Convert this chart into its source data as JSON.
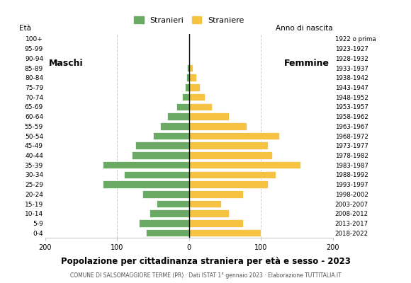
{
  "age_groups": [
    "0-4",
    "5-9",
    "10-14",
    "15-19",
    "20-24",
    "25-29",
    "30-34",
    "35-39",
    "40-44",
    "45-49",
    "50-54",
    "55-59",
    "60-64",
    "65-69",
    "70-74",
    "75-79",
    "80-84",
    "85-89",
    "90-94",
    "95-99",
    "100+"
  ],
  "birth_years": [
    "2018-2022",
    "2013-2017",
    "2008-2012",
    "2003-2007",
    "1998-2002",
    "1993-1997",
    "1988-1992",
    "1983-1987",
    "1978-1982",
    "1973-1977",
    "1968-1972",
    "1963-1967",
    "1958-1962",
    "1953-1957",
    "1948-1952",
    "1943-1947",
    "1938-1942",
    "1933-1937",
    "1928-1932",
    "1923-1927",
    "1922 o prima"
  ],
  "males": [
    60,
    70,
    55,
    45,
    65,
    120,
    90,
    120,
    80,
    75,
    50,
    40,
    30,
    18,
    10,
    6,
    4,
    3,
    0,
    0,
    0
  ],
  "females": [
    100,
    75,
    55,
    45,
    75,
    110,
    120,
    155,
    115,
    110,
    125,
    80,
    55,
    32,
    22,
    15,
    10,
    5,
    0,
    0,
    0
  ],
  "male_color": "#6aaa64",
  "female_color": "#f5c242",
  "bg_color": "#ffffff",
  "grid_color": "#cccccc",
  "xlim": 200,
  "title": "Popolazione per cittadinanza straniera per età e sesso - 2023",
  "subtitle": "COMUNE DI SALSOMAGGIORE TERME (PR) · Dati ISTAT 1° gennaio 2023 · Elaborazione TUTTITALIA.IT",
  "legend_male": "Stranieri",
  "legend_female": "Straniere",
  "ylabel_left": "Età",
  "ylabel_right": "Anno di nascita",
  "label_maschi": "Maschi",
  "label_femmine": "Femmine"
}
